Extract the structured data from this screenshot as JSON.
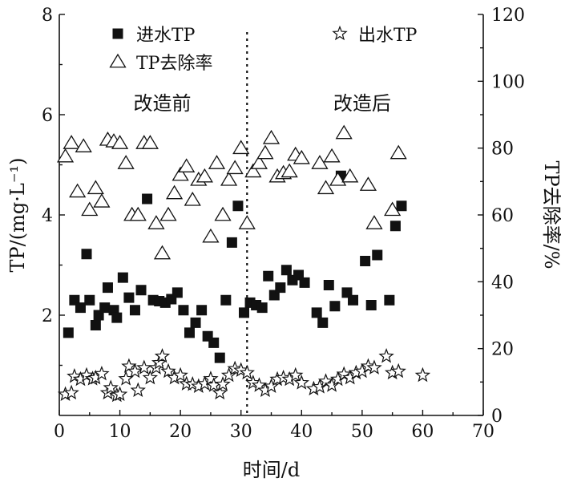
{
  "chart_data": {
    "type": "scatter",
    "xlabel": "时间/d",
    "ylabel_left": "TP/(mg·L⁻¹)",
    "ylabel_right": "TP去除率/%",
    "xlim": [
      0,
      70
    ],
    "ylim_left": [
      0,
      8
    ],
    "ylim_right": [
      0,
      120
    ],
    "x_ticks": [
      0,
      10,
      20,
      30,
      40,
      50,
      60,
      70
    ],
    "y_left_ticks": [
      2,
      4,
      6,
      8
    ],
    "y_right_ticks": [
      0,
      20,
      40,
      60,
      80,
      100,
      120
    ],
    "divider_x": 31,
    "annotations": [
      {
        "text": "改造前",
        "x": 17,
        "y_left": 6.1
      },
      {
        "text": "改造后",
        "x": 50,
        "y_left": 6.1
      }
    ],
    "legend": [
      {
        "name": "进水TP",
        "marker": "square"
      },
      {
        "name": "出水TP",
        "marker": "star"
      },
      {
        "name": "TP去除率",
        "marker": "triangle"
      }
    ],
    "series": [
      {
        "name": "进水TP",
        "marker": "square",
        "axis": "left",
        "points": [
          [
            1.5,
            1.65
          ],
          [
            2.5,
            2.3
          ],
          [
            3.5,
            2.15
          ],
          [
            4.5,
            3.22
          ],
          [
            5,
            2.3
          ],
          [
            6,
            1.8
          ],
          [
            6.5,
            2.0
          ],
          [
            7.5,
            2.15
          ],
          [
            8,
            2.55
          ],
          [
            9,
            2.1
          ],
          [
            9.5,
            1.95
          ],
          [
            10.5,
            2.75
          ],
          [
            11.5,
            2.35
          ],
          [
            12.5,
            2.1
          ],
          [
            13.5,
            2.5
          ],
          [
            14.5,
            4.32
          ],
          [
            15.5,
            2.3
          ],
          [
            16.5,
            2.28
          ],
          [
            17.5,
            2.25
          ],
          [
            18.5,
            2.32
          ],
          [
            19.5,
            2.45
          ],
          [
            20.5,
            2.1
          ],
          [
            21.5,
            1.65
          ],
          [
            22.5,
            1.85
          ],
          [
            23.5,
            2.1
          ],
          [
            24.5,
            1.58
          ],
          [
            25.5,
            1.45
          ],
          [
            26.5,
            1.15
          ],
          [
            27.5,
            2.3
          ],
          [
            28.5,
            3.45
          ],
          [
            29.5,
            4.18
          ],
          [
            30.5,
            2.05
          ],
          [
            31.5,
            2.25
          ],
          [
            32.5,
            2.2
          ],
          [
            33.5,
            2.15
          ],
          [
            34.5,
            2.78
          ],
          [
            35.5,
            2.4
          ],
          [
            36.5,
            2.55
          ],
          [
            37.5,
            2.9
          ],
          [
            38.5,
            2.7
          ],
          [
            39.5,
            2.8
          ],
          [
            40.5,
            2.65
          ],
          [
            42.5,
            2.05
          ],
          [
            43.5,
            1.85
          ],
          [
            44.5,
            2.6
          ],
          [
            45.5,
            2.18
          ],
          [
            46.5,
            4.78
          ],
          [
            47.5,
            2.45
          ],
          [
            48.5,
            2.3
          ],
          [
            50.5,
            3.08
          ],
          [
            51.5,
            2.2
          ],
          [
            52.5,
            3.2
          ],
          [
            54.5,
            2.3
          ],
          [
            55.5,
            3.78
          ],
          [
            56.5,
            4.18
          ]
        ]
      },
      {
        "name": "出水TP",
        "marker": "star",
        "axis": "left",
        "points": [
          [
            1,
            0.42
          ],
          [
            2,
            0.45
          ],
          [
            2.5,
            0.78
          ],
          [
            3.5,
            0.72
          ],
          [
            4.5,
            0.8
          ],
          [
            5.5,
            0.73
          ],
          [
            6,
            0.75
          ],
          [
            7,
            0.83
          ],
          [
            8,
            0.45
          ],
          [
            8.5,
            0.55
          ],
          [
            9.5,
            0.4
          ],
          [
            10,
            0.42
          ],
          [
            11,
            0.73
          ],
          [
            11.5,
            0.98
          ],
          [
            12.5,
            0.88
          ],
          [
            13,
            0.5
          ],
          [
            14,
            0.95
          ],
          [
            15,
            0.75
          ],
          [
            16,
            0.95
          ],
          [
            16.5,
            1.05
          ],
          [
            17,
            1.18
          ],
          [
            18,
            0.88
          ],
          [
            19,
            0.75
          ],
          [
            20,
            0.8
          ],
          [
            21,
            0.63
          ],
          [
            22,
            0.62
          ],
          [
            23,
            0.58
          ],
          [
            24,
            0.63
          ],
          [
            25,
            0.73
          ],
          [
            25.5,
            0.6
          ],
          [
            26.5,
            0.45
          ],
          [
            27,
            0.62
          ],
          [
            28,
            0.8
          ],
          [
            29,
            0.93
          ],
          [
            30,
            0.9
          ],
          [
            31,
            0.85
          ],
          [
            32,
            0.65
          ],
          [
            33,
            0.6
          ],
          [
            34,
            0.5
          ],
          [
            35,
            0.58
          ],
          [
            36,
            0.72
          ],
          [
            37,
            0.75
          ],
          [
            38,
            0.72
          ],
          [
            39,
            0.8
          ],
          [
            40,
            0.65
          ],
          [
            42,
            0.53
          ],
          [
            43,
            0.57
          ],
          [
            44,
            0.68
          ],
          [
            45,
            0.6
          ],
          [
            46,
            0.72
          ],
          [
            47,
            0.82
          ],
          [
            48,
            0.75
          ],
          [
            49,
            0.85
          ],
          [
            50,
            0.88
          ],
          [
            51,
            0.98
          ],
          [
            52,
            0.95
          ],
          [
            54,
            1.18
          ],
          [
            55,
            0.85
          ],
          [
            56,
            0.88
          ],
          [
            60,
            0.8
          ]
        ]
      },
      {
        "name": "TP去除率",
        "marker": "triangle",
        "axis": "right",
        "points": [
          [
            1,
            77.5
          ],
          [
            2,
            81.5
          ],
          [
            3,
            67
          ],
          [
            4,
            80.5
          ],
          [
            5,
            61.5
          ],
          [
            6,
            68
          ],
          [
            7,
            64
          ],
          [
            8,
            82.5
          ],
          [
            9,
            82
          ],
          [
            10,
            81.5
          ],
          [
            11,
            75.5
          ],
          [
            12,
            60
          ],
          [
            13,
            60
          ],
          [
            14,
            81.5
          ],
          [
            15,
            81.5
          ],
          [
            16,
            57.5
          ],
          [
            17,
            48.5
          ],
          [
            18,
            60
          ],
          [
            19,
            66.5
          ],
          [
            20,
            72
          ],
          [
            21,
            74.5
          ],
          [
            22,
            64.5
          ],
          [
            23,
            70.5
          ],
          [
            24,
            71.5
          ],
          [
            25,
            53.5
          ],
          [
            26,
            75.5
          ],
          [
            27,
            60
          ],
          [
            28,
            70.5
          ],
          [
            29,
            74
          ],
          [
            30,
            80
          ],
          [
            31,
            57.5
          ],
          [
            32,
            73
          ],
          [
            33,
            75.5
          ],
          [
            34,
            78.5
          ],
          [
            35,
            83
          ],
          [
            36,
            71.5
          ],
          [
            37,
            72.5
          ],
          [
            38,
            73
          ],
          [
            39,
            78
          ],
          [
            40,
            77
          ],
          [
            43,
            75.5
          ],
          [
            44,
            68
          ],
          [
            45,
            77.5
          ],
          [
            46,
            70.5
          ],
          [
            47,
            84.5
          ],
          [
            48,
            71.5
          ],
          [
            51,
            69
          ],
          [
            52,
            57.5
          ],
          [
            55,
            61.5
          ],
          [
            56,
            78.5
          ]
        ]
      }
    ]
  }
}
